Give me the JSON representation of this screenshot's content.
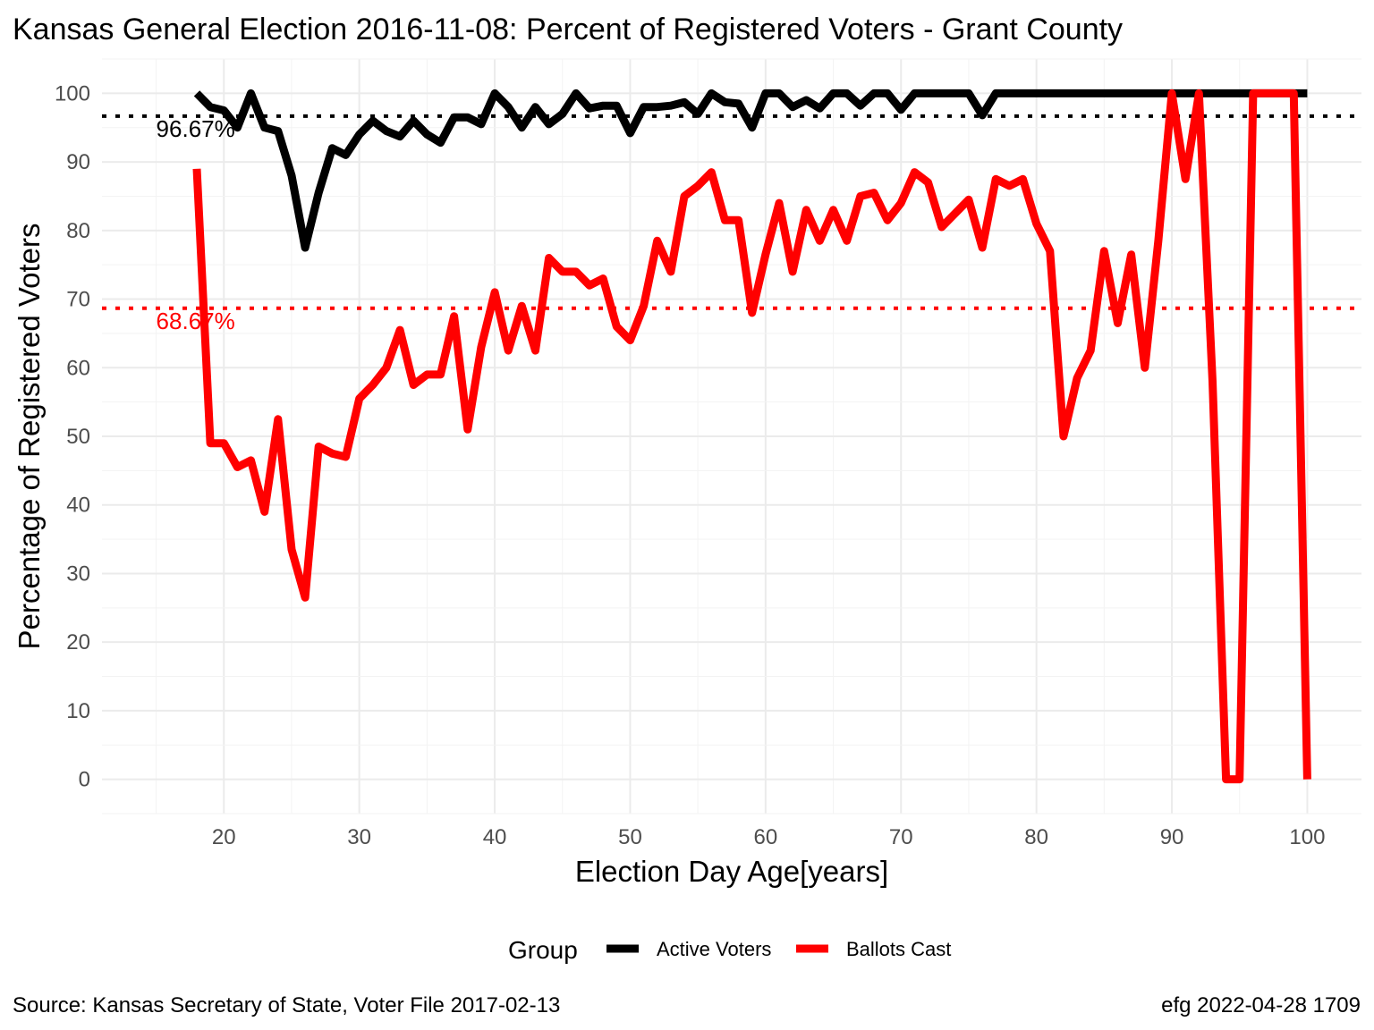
{
  "chart_data": {
    "type": "line",
    "title": "Kansas General Election 2016-11-08:  Percent of Registered Voters - Grant County",
    "xlabel": "Election Day Age[years]",
    "ylabel": "Percentage of Registered Voters",
    "xlim": [
      11,
      104
    ],
    "ylim": [
      -5,
      105
    ],
    "x_ticks": [
      20,
      30,
      40,
      50,
      60,
      70,
      80,
      90,
      100
    ],
    "x_tick_labels": [
      "20",
      "30",
      "40",
      "50",
      "60",
      "70",
      "80",
      "90",
      "100"
    ],
    "y_ticks": [
      0,
      10,
      20,
      30,
      40,
      50,
      60,
      70,
      80,
      90,
      100
    ],
    "y_tick_labels": [
      "0",
      "10",
      "20",
      "30",
      "40",
      "50",
      "60",
      "70",
      "80",
      "90",
      "100"
    ],
    "grid": true,
    "legend": {
      "title": "Group",
      "position": "bottom",
      "entries": [
        "Active Voters",
        "Ballots Cast"
      ]
    },
    "reference_lines": [
      {
        "series": "Active Voters",
        "value": 96.67,
        "label": "96.67%",
        "color": "#000000"
      },
      {
        "series": "Ballots Cast",
        "value": 68.67,
        "label": "68.67%",
        "color": "#ff0000"
      }
    ],
    "x": [
      18,
      19,
      20,
      21,
      22,
      23,
      24,
      25,
      26,
      27,
      28,
      29,
      30,
      31,
      32,
      33,
      34,
      35,
      36,
      37,
      38,
      39,
      40,
      41,
      42,
      43,
      44,
      45,
      46,
      47,
      48,
      49,
      50,
      51,
      52,
      53,
      54,
      55,
      56,
      57,
      58,
      59,
      60,
      61,
      62,
      63,
      64,
      65,
      66,
      67,
      68,
      69,
      70,
      71,
      72,
      73,
      74,
      75,
      76,
      77,
      78,
      79,
      80,
      81,
      82,
      83,
      84,
      85,
      86,
      87,
      88,
      89,
      90,
      91,
      92,
      93,
      94,
      95,
      96,
      97,
      98,
      99,
      100
    ],
    "series": [
      {
        "name": "Active Voters",
        "color": "#000000",
        "values": [
          100,
          98,
          97.5,
          95,
          100,
          95,
          94.5,
          88,
          77.5,
          85.5,
          92,
          91,
          94,
          96,
          94.5,
          93.7,
          96,
          94,
          92.8,
          96.5,
          96.5,
          95.5,
          100,
          98,
          95,
          98,
          95.5,
          97,
          100,
          97.8,
          98.2,
          98.2,
          94.2,
          98,
          98,
          98.2,
          98.7,
          97,
          100,
          98.7,
          98.5,
          95,
          100,
          100,
          98,
          99,
          97.8,
          100,
          100,
          98.2,
          100,
          100,
          97.6,
          100,
          100,
          100,
          100,
          100,
          96.8,
          100,
          100,
          100,
          100,
          100,
          100,
          100,
          100,
          100,
          100,
          100,
          100,
          100,
          100,
          100,
          100,
          100,
          100,
          100,
          100,
          100,
          100,
          100,
          100
        ]
      },
      {
        "name": "Ballots Cast",
        "color": "#ff0000",
        "values": [
          89,
          49,
          49,
          45.5,
          46.5,
          39,
          52.5,
          33.5,
          26.5,
          48.5,
          47.5,
          47,
          55.5,
          57.5,
          60,
          65.5,
          57.5,
          59,
          59,
          67.5,
          51,
          63,
          71,
          62.5,
          69,
          62.5,
          76,
          74,
          74,
          72,
          73,
          66,
          64,
          69,
          78.5,
          74,
          85,
          86.5,
          88.5,
          81.5,
          81.5,
          68,
          76.5,
          84,
          74,
          83,
          78.5,
          83,
          78.5,
          85,
          85.5,
          81.5,
          84,
          88.5,
          87,
          80.5,
          82.5,
          84.5,
          77.5,
          87.5,
          86.5,
          87.5,
          81,
          77,
          50,
          58.5,
          62.5,
          77,
          66.5,
          76.5,
          60,
          78.5,
          100,
          87.5,
          100,
          58,
          0,
          0,
          100,
          100,
          100,
          100,
          0
        ]
      }
    ]
  },
  "caption": {
    "left": "Source:  Kansas Secretary of State, Voter File  2017-02-13",
    "right": "efg 2022-04-28 1709"
  }
}
